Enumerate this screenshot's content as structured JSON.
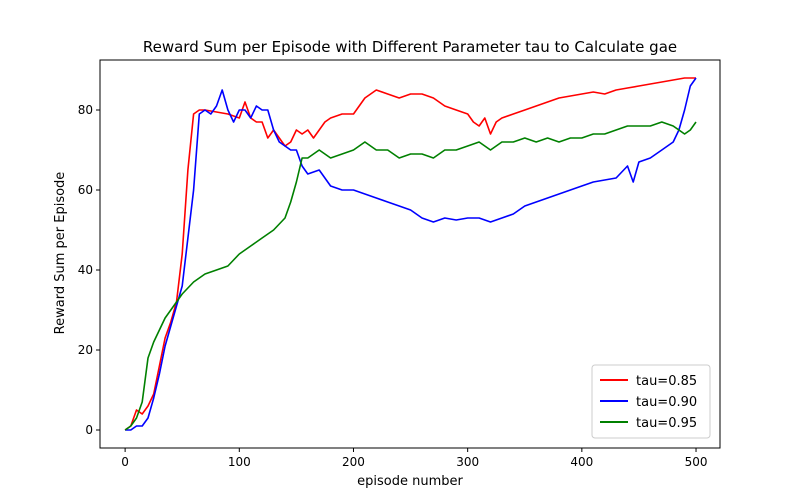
{
  "chart_data": {
    "type": "line",
    "title": "Reward Sum per Episode with Different Parameter tau to Calculate gae",
    "xlabel": "episode number",
    "ylabel": "Reward Sum per Episode",
    "xlim": [
      -22,
      521
    ],
    "ylim": [
      -4.5,
      92.5
    ],
    "xticks": [
      0,
      100,
      200,
      300,
      400,
      500
    ],
    "yticks": [
      0,
      20,
      40,
      60,
      80
    ],
    "grid": false,
    "legend_position": "lower-right",
    "series": [
      {
        "name": "tau=0.85",
        "color": "#ff0000",
        "x": [
          0,
          5,
          10,
          15,
          20,
          25,
          30,
          35,
          40,
          45,
          50,
          55,
          60,
          65,
          70,
          80,
          90,
          100,
          105,
          110,
          115,
          120,
          125,
          130,
          135,
          140,
          145,
          150,
          155,
          160,
          165,
          170,
          175,
          180,
          190,
          200,
          210,
          220,
          230,
          240,
          250,
          260,
          270,
          280,
          290,
          300,
          305,
          310,
          315,
          320,
          325,
          330,
          340,
          350,
          360,
          370,
          380,
          390,
          400,
          410,
          420,
          430,
          440,
          450,
          460,
          470,
          480,
          490,
          500
        ],
        "y": [
          0,
          1,
          5,
          4,
          6,
          9,
          16,
          23,
          27,
          32,
          44,
          65,
          79,
          80,
          80,
          79.5,
          79,
          78,
          82,
          78,
          77,
          77,
          73,
          75,
          73,
          71,
          72,
          75,
          74,
          75,
          73,
          75,
          77,
          78,
          79,
          79,
          83,
          85,
          84,
          83,
          84,
          84,
          83,
          81,
          80,
          79,
          77,
          76,
          78,
          74,
          77,
          78,
          79,
          80,
          81,
          82,
          83,
          83.5,
          84,
          84.5,
          84,
          85,
          85.5,
          86,
          86.5,
          87,
          87.5,
          88,
          88
        ]
      },
      {
        "name": "tau=0.90",
        "color": "#0000ff",
        "x": [
          0,
          5,
          10,
          15,
          20,
          25,
          30,
          35,
          40,
          45,
          50,
          55,
          60,
          65,
          70,
          75,
          80,
          85,
          90,
          95,
          100,
          105,
          110,
          115,
          120,
          125,
          130,
          135,
          140,
          145,
          150,
          155,
          160,
          170,
          180,
          190,
          200,
          210,
          220,
          230,
          240,
          250,
          260,
          270,
          280,
          290,
          300,
          310,
          320,
          330,
          340,
          350,
          360,
          370,
          380,
          390,
          400,
          410,
          420,
          430,
          440,
          445,
          450,
          460,
          470,
          480,
          485,
          490,
          495,
          500
        ],
        "y": [
          0,
          0,
          1,
          1,
          3,
          8,
          14,
          21,
          26,
          31,
          36,
          48,
          60,
          79,
          80,
          79,
          81,
          85,
          80,
          77,
          80,
          80,
          78,
          81,
          80,
          80,
          75,
          72,
          71,
          70,
          70,
          66,
          64,
          65,
          61,
          60,
          60,
          59,
          58,
          57,
          56,
          55,
          53,
          52,
          53,
          52.5,
          53,
          53,
          52,
          53,
          54,
          56,
          57,
          58,
          59,
          60,
          61,
          62,
          62.5,
          63,
          66,
          62,
          67,
          68,
          70,
          72,
          75,
          80,
          86,
          88
        ]
      },
      {
        "name": "tau=0.95",
        "color": "#008000",
        "x": [
          0,
          5,
          10,
          15,
          20,
          25,
          30,
          35,
          40,
          50,
          60,
          70,
          80,
          90,
          100,
          110,
          120,
          130,
          140,
          145,
          150,
          155,
          160,
          170,
          180,
          190,
          200,
          210,
          220,
          230,
          240,
          250,
          260,
          270,
          280,
          290,
          300,
          310,
          320,
          330,
          340,
          350,
          360,
          370,
          380,
          390,
          400,
          410,
          420,
          430,
          440,
          450,
          460,
          470,
          480,
          490,
          495,
          500
        ],
        "y": [
          0,
          1,
          3,
          7,
          18,
          22,
          25,
          28,
          30,
          34,
          37,
          39,
          40,
          41,
          44,
          46,
          48,
          50,
          53,
          57,
          62,
          68,
          68,
          70,
          68,
          69,
          70,
          72,
          70,
          70,
          68,
          69,
          69,
          68,
          70,
          70,
          71,
          72,
          70,
          72,
          72,
          73,
          72,
          73,
          72,
          73,
          73,
          74,
          74,
          75,
          76,
          76,
          76,
          77,
          76,
          74,
          75,
          77
        ]
      }
    ]
  }
}
